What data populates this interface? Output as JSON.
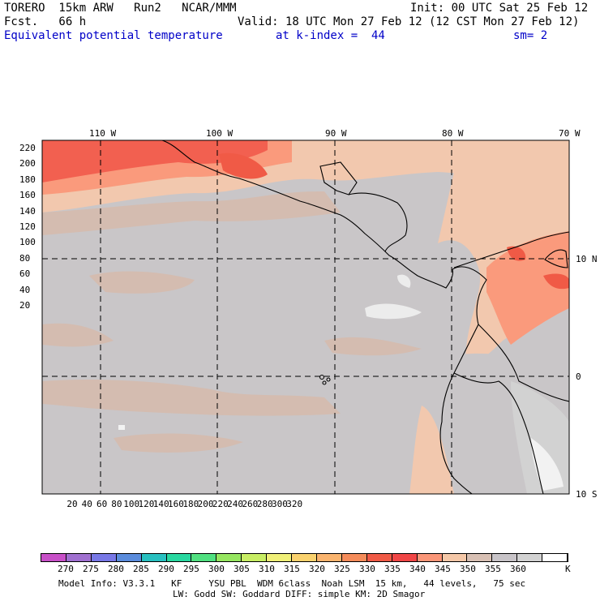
{
  "header": {
    "model": "TORERO  15km ARW   Run2   NCAR/MMM",
    "init": "Init: 00 UTC Sat 25 Feb 12",
    "fcst": "Fcst.   66 h",
    "valid": "Valid: 18 UTC Mon 27 Feb 12 (12 CST Mon 27 Feb 12)",
    "field": "Equivalent potential temperature",
    "level": "at k-index =  44",
    "smoothing": "sm= 2"
  },
  "map": {
    "lon_labels": [
      "110 W",
      "100 W",
      "90 W",
      "80 W",
      "70 W"
    ],
    "lat_labels": [
      "10 N",
      "0",
      "10 S"
    ],
    "y_ticks": [
      "220",
      "200",
      "180",
      "160",
      "140",
      "120",
      "100",
      "80",
      "60",
      "40",
      "20"
    ],
    "x_ticks": [
      "20",
      "40",
      "60",
      "80",
      "100",
      "120",
      "140",
      "160",
      "180",
      "200",
      "220",
      "240",
      "260",
      "280",
      "300",
      "320"
    ]
  },
  "colorbar": {
    "unit": "K",
    "labels": [
      "270",
      "275",
      "280",
      "285",
      "290",
      "295",
      "300",
      "305",
      "310",
      "315",
      "320",
      "325",
      "330",
      "335",
      "340",
      "345",
      "350",
      "355",
      "360"
    ],
    "colors": [
      "#c850c8",
      "#a070d0",
      "#7878e6",
      "#5a8cdc",
      "#28c0c0",
      "#28d8a0",
      "#50e080",
      "#96e660",
      "#c8ee64",
      "#f0f078",
      "#fad26e",
      "#fab46e",
      "#f58c5a",
      "#f05a46",
      "#f04646",
      "#fa9678",
      "#f5c8a8",
      "#d8c0b4",
      "#c8c4c8",
      "#d2d2d2",
      "#ffffff"
    ]
  },
  "footer": {
    "line1": "Model Info: V3.3.1   KF     YSU PBL  WDM 6class  Noah LSM  15 km,   44 levels,   75 sec",
    "line2": "LW: Godd SW: Goddard DIFF: simple KM: 2D Smagor"
  }
}
